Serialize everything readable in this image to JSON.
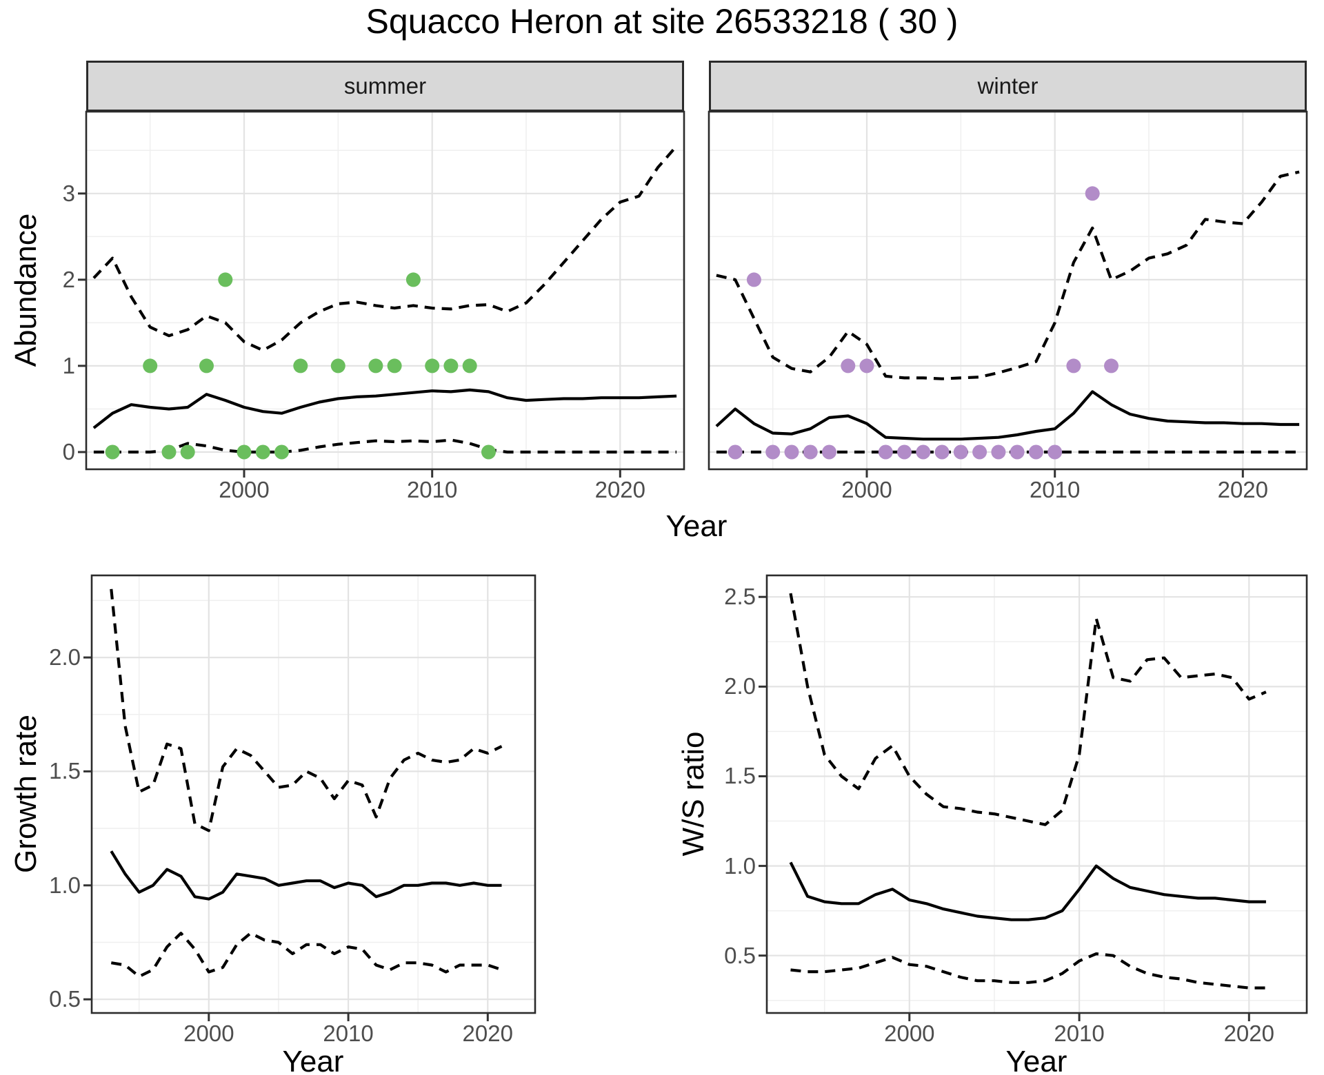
{
  "title": "Squacco Heron at site 26533218 ( 30 )",
  "colors": {
    "summer_points": "#6abe5d",
    "winter_points": "#b28cc8",
    "line": "#000000",
    "grid_major": "#e3e3e3",
    "grid_minor": "#efefef",
    "strip_bg": "#d8d8d8",
    "panel_border": "#2b2b2b",
    "tick_text": "#4d4d4d",
    "title_text": "#000000"
  },
  "chart_data": [
    {
      "id": "summer",
      "type": "line",
      "facet_label": "summer",
      "xlabel": "Year",
      "ylabel": "Abundance",
      "xlim": [
        1991.6,
        2023.4
      ],
      "ylim": [
        -0.2,
        3.95
      ],
      "xticks": [
        2000,
        2010,
        2020
      ],
      "xtick_labels": [
        "2000",
        "2010",
        "2020"
      ],
      "yticks": [
        0,
        1,
        2,
        3
      ],
      "ytick_labels": [
        "0",
        "1",
        "2",
        "3"
      ],
      "x_minor": [
        1995,
        2005,
        2015
      ],
      "y_minor": [
        0.5,
        1.5,
        2.5,
        3.5
      ],
      "show_ytick_labels": true,
      "grid": true,
      "legend": "none",
      "points": {
        "name": "summer-observed-counts",
        "color_key": "summer_points",
        "data": [
          [
            1993,
            0
          ],
          [
            1995,
            1
          ],
          [
            1996,
            0
          ],
          [
            1997,
            0
          ],
          [
            1998,
            1
          ],
          [
            1999,
            2
          ],
          [
            2000,
            0
          ],
          [
            2001,
            0
          ],
          [
            2002,
            0
          ],
          [
            2003,
            1
          ],
          [
            2005,
            1
          ],
          [
            2007,
            1
          ],
          [
            2008,
            1
          ],
          [
            2009,
            2
          ],
          [
            2010,
            1
          ],
          [
            2011,
            1
          ],
          [
            2012,
            1
          ],
          [
            2013,
            0
          ]
        ]
      },
      "series": [
        {
          "name": "upper-ci",
          "style": "dashed",
          "x0": 1992,
          "y": [
            2.02,
            2.25,
            1.8,
            1.45,
            1.35,
            1.42,
            1.58,
            1.5,
            1.28,
            1.18,
            1.3,
            1.5,
            1.63,
            1.72,
            1.74,
            1.7,
            1.67,
            1.7,
            1.67,
            1.66,
            1.7,
            1.71,
            1.63,
            1.73,
            1.95,
            2.2,
            2.45,
            2.7,
            2.9,
            2.97,
            3.3,
            3.55
          ]
        },
        {
          "name": "lower-ci",
          "style": "dashed",
          "x0": 1992,
          "y": [
            0,
            0,
            0,
            0,
            0.02,
            0.1,
            0.07,
            0.02,
            0,
            0,
            0,
            0.02,
            0.06,
            0.09,
            0.11,
            0.13,
            0.12,
            0.13,
            0.12,
            0.14,
            0.1,
            0.03,
            0,
            0,
            0,
            0,
            0,
            0,
            0,
            0,
            0,
            0
          ]
        },
        {
          "name": "median",
          "style": "solid",
          "x0": 1992,
          "y": [
            0.28,
            0.45,
            0.55,
            0.52,
            0.5,
            0.52,
            0.67,
            0.6,
            0.52,
            0.47,
            0.45,
            0.52,
            0.58,
            0.62,
            0.64,
            0.65,
            0.67,
            0.69,
            0.71,
            0.7,
            0.72,
            0.7,
            0.63,
            0.6,
            0.61,
            0.62,
            0.62,
            0.63,
            0.63,
            0.63,
            0.64,
            0.65
          ]
        }
      ]
    },
    {
      "id": "winter",
      "type": "line",
      "facet_label": "winter",
      "xlabel": "Year",
      "ylabel": "Abundance",
      "xlim": [
        1991.6,
        2023.4
      ],
      "ylim": [
        -0.2,
        3.95
      ],
      "xticks": [
        2000,
        2010,
        2020
      ],
      "xtick_labels": [
        "2000",
        "2010",
        "2020"
      ],
      "yticks": [
        0,
        1,
        2,
        3
      ],
      "ytick_labels": [
        "0",
        "1",
        "2",
        "3"
      ],
      "x_minor": [
        1995,
        2005,
        2015
      ],
      "y_minor": [
        0.5,
        1.5,
        2.5,
        3.5
      ],
      "show_ytick_labels": false,
      "grid": true,
      "legend": "none",
      "points": {
        "name": "winter-observed-counts",
        "color_key": "winter_points",
        "data": [
          [
            1993,
            0
          ],
          [
            1994,
            2
          ],
          [
            1995,
            0
          ],
          [
            1996,
            0
          ],
          [
            1997,
            0
          ],
          [
            1998,
            0
          ],
          [
            1999,
            1
          ],
          [
            2000,
            1
          ],
          [
            2001,
            0
          ],
          [
            2002,
            0
          ],
          [
            2003,
            0
          ],
          [
            2004,
            0
          ],
          [
            2005,
            0
          ],
          [
            2006,
            0
          ],
          [
            2007,
            0
          ],
          [
            2008,
            0
          ],
          [
            2009,
            0
          ],
          [
            2010,
            0
          ],
          [
            2011,
            1
          ],
          [
            2012,
            3
          ],
          [
            2013,
            1
          ]
        ]
      },
      "series": [
        {
          "name": "upper-ci",
          "style": "dashed",
          "x0": 1992,
          "y": [
            2.05,
            2.0,
            1.55,
            1.1,
            0.97,
            0.93,
            1.1,
            1.4,
            1.25,
            0.88,
            0.86,
            0.86,
            0.85,
            0.86,
            0.87,
            0.92,
            0.98,
            1.05,
            1.5,
            2.2,
            2.6,
            2.0,
            2.1,
            2.25,
            2.3,
            2.4,
            2.7,
            2.67,
            2.65,
            2.9,
            3.2,
            3.25
          ]
        },
        {
          "name": "lower-ci",
          "style": "dashed",
          "x0": 1992,
          "y": [
            0,
            0,
            0,
            0,
            0,
            0,
            0,
            0,
            0,
            0,
            0,
            0,
            0,
            0,
            0,
            0,
            0,
            0,
            0,
            0,
            0,
            0,
            0,
            0,
            0,
            0,
            0,
            0,
            0,
            0,
            0,
            0
          ]
        },
        {
          "name": "median",
          "style": "solid",
          "x0": 1992,
          "y": [
            0.3,
            0.5,
            0.33,
            0.22,
            0.21,
            0.27,
            0.4,
            0.42,
            0.33,
            0.17,
            0.16,
            0.15,
            0.15,
            0.15,
            0.16,
            0.17,
            0.2,
            0.24,
            0.27,
            0.45,
            0.7,
            0.55,
            0.44,
            0.39,
            0.36,
            0.35,
            0.34,
            0.34,
            0.33,
            0.33,
            0.32,
            0.32
          ]
        }
      ]
    },
    {
      "id": "growth",
      "type": "line",
      "facet_label": null,
      "xlabel": "Year",
      "ylabel": "Growth rate",
      "xlim": [
        1991.6,
        2023.4
      ],
      "ylim": [
        0.44,
        2.36
      ],
      "xticks": [
        2000,
        2010,
        2020
      ],
      "xtick_labels": [
        "2000",
        "2010",
        "2020"
      ],
      "yticks": [
        0.5,
        1.0,
        1.5,
        2.0
      ],
      "ytick_labels": [
        "0.5",
        "1.0",
        "1.5",
        "2.0"
      ],
      "x_minor": [
        1995,
        2005,
        2015
      ],
      "y_minor": [
        0.75,
        1.25,
        1.75,
        2.25
      ],
      "show_ytick_labels": true,
      "grid": true,
      "legend": "none",
      "points": null,
      "series": [
        {
          "name": "upper-ci",
          "style": "dashed",
          "x0": 1993,
          "y": [
            2.3,
            1.7,
            1.41,
            1.44,
            1.62,
            1.6,
            1.27,
            1.24,
            1.52,
            1.6,
            1.57,
            1.5,
            1.43,
            1.44,
            1.5,
            1.47,
            1.38,
            1.46,
            1.44,
            1.3,
            1.47,
            1.55,
            1.58,
            1.55,
            1.54,
            1.55,
            1.6,
            1.58,
            1.61
          ]
        },
        {
          "name": "lower-ci",
          "style": "dashed",
          "x0": 1993,
          "y": [
            0.66,
            0.65,
            0.6,
            0.63,
            0.73,
            0.79,
            0.72,
            0.62,
            0.64,
            0.74,
            0.79,
            0.76,
            0.75,
            0.7,
            0.74,
            0.74,
            0.7,
            0.73,
            0.72,
            0.65,
            0.63,
            0.66,
            0.66,
            0.65,
            0.62,
            0.65,
            0.65,
            0.65,
            0.63
          ]
        },
        {
          "name": "median",
          "style": "solid",
          "x0": 1993,
          "y": [
            1.15,
            1.05,
            0.97,
            1.0,
            1.07,
            1.04,
            0.95,
            0.94,
            0.97,
            1.05,
            1.04,
            1.03,
            1.0,
            1.01,
            1.02,
            1.02,
            0.99,
            1.01,
            1.0,
            0.95,
            0.97,
            1.0,
            1.0,
            1.01,
            1.01,
            1.0,
            1.01,
            1.0,
            1.0
          ]
        }
      ]
    },
    {
      "id": "ws",
      "type": "line",
      "facet_label": null,
      "xlabel": "Year",
      "ylabel": "W/S ratio",
      "xlim": [
        1991.6,
        2023.4
      ],
      "ylim": [
        0.18,
        2.62
      ],
      "xticks": [
        2000,
        2010,
        2020
      ],
      "xtick_labels": [
        "2000",
        "2010",
        "2020"
      ],
      "yticks": [
        0.5,
        1.0,
        1.5,
        2.0,
        2.5
      ],
      "ytick_labels": [
        "0.5",
        "1.0",
        "1.5",
        "2.0",
        "2.5"
      ],
      "x_minor": [
        1995,
        2005,
        2015
      ],
      "y_minor": [
        0.25,
        0.75,
        1.25,
        1.75,
        2.25
      ],
      "show_ytick_labels": true,
      "grid": true,
      "legend": "none",
      "points": null,
      "series": [
        {
          "name": "upper-ci",
          "style": "dashed",
          "x0": 1993,
          "y": [
            2.52,
            2.0,
            1.62,
            1.5,
            1.43,
            1.6,
            1.67,
            1.5,
            1.4,
            1.33,
            1.32,
            1.3,
            1.29,
            1.27,
            1.25,
            1.23,
            1.31,
            1.62,
            2.38,
            2.05,
            2.03,
            2.15,
            2.16,
            2.05,
            2.06,
            2.07,
            2.05,
            1.93,
            1.97
          ]
        },
        {
          "name": "lower-ci",
          "style": "dashed",
          "x0": 1993,
          "y": [
            0.42,
            0.41,
            0.41,
            0.42,
            0.43,
            0.46,
            0.49,
            0.45,
            0.44,
            0.41,
            0.38,
            0.36,
            0.36,
            0.35,
            0.35,
            0.36,
            0.4,
            0.47,
            0.51,
            0.5,
            0.44,
            0.4,
            0.38,
            0.37,
            0.35,
            0.34,
            0.33,
            0.32,
            0.32
          ]
        },
        {
          "name": "median",
          "style": "solid",
          "x0": 1993,
          "y": [
            1.02,
            0.83,
            0.8,
            0.79,
            0.79,
            0.84,
            0.87,
            0.81,
            0.79,
            0.76,
            0.74,
            0.72,
            0.71,
            0.7,
            0.7,
            0.71,
            0.75,
            0.87,
            1.0,
            0.93,
            0.88,
            0.86,
            0.84,
            0.83,
            0.82,
            0.82,
            0.81,
            0.8,
            0.8
          ]
        }
      ]
    }
  ]
}
